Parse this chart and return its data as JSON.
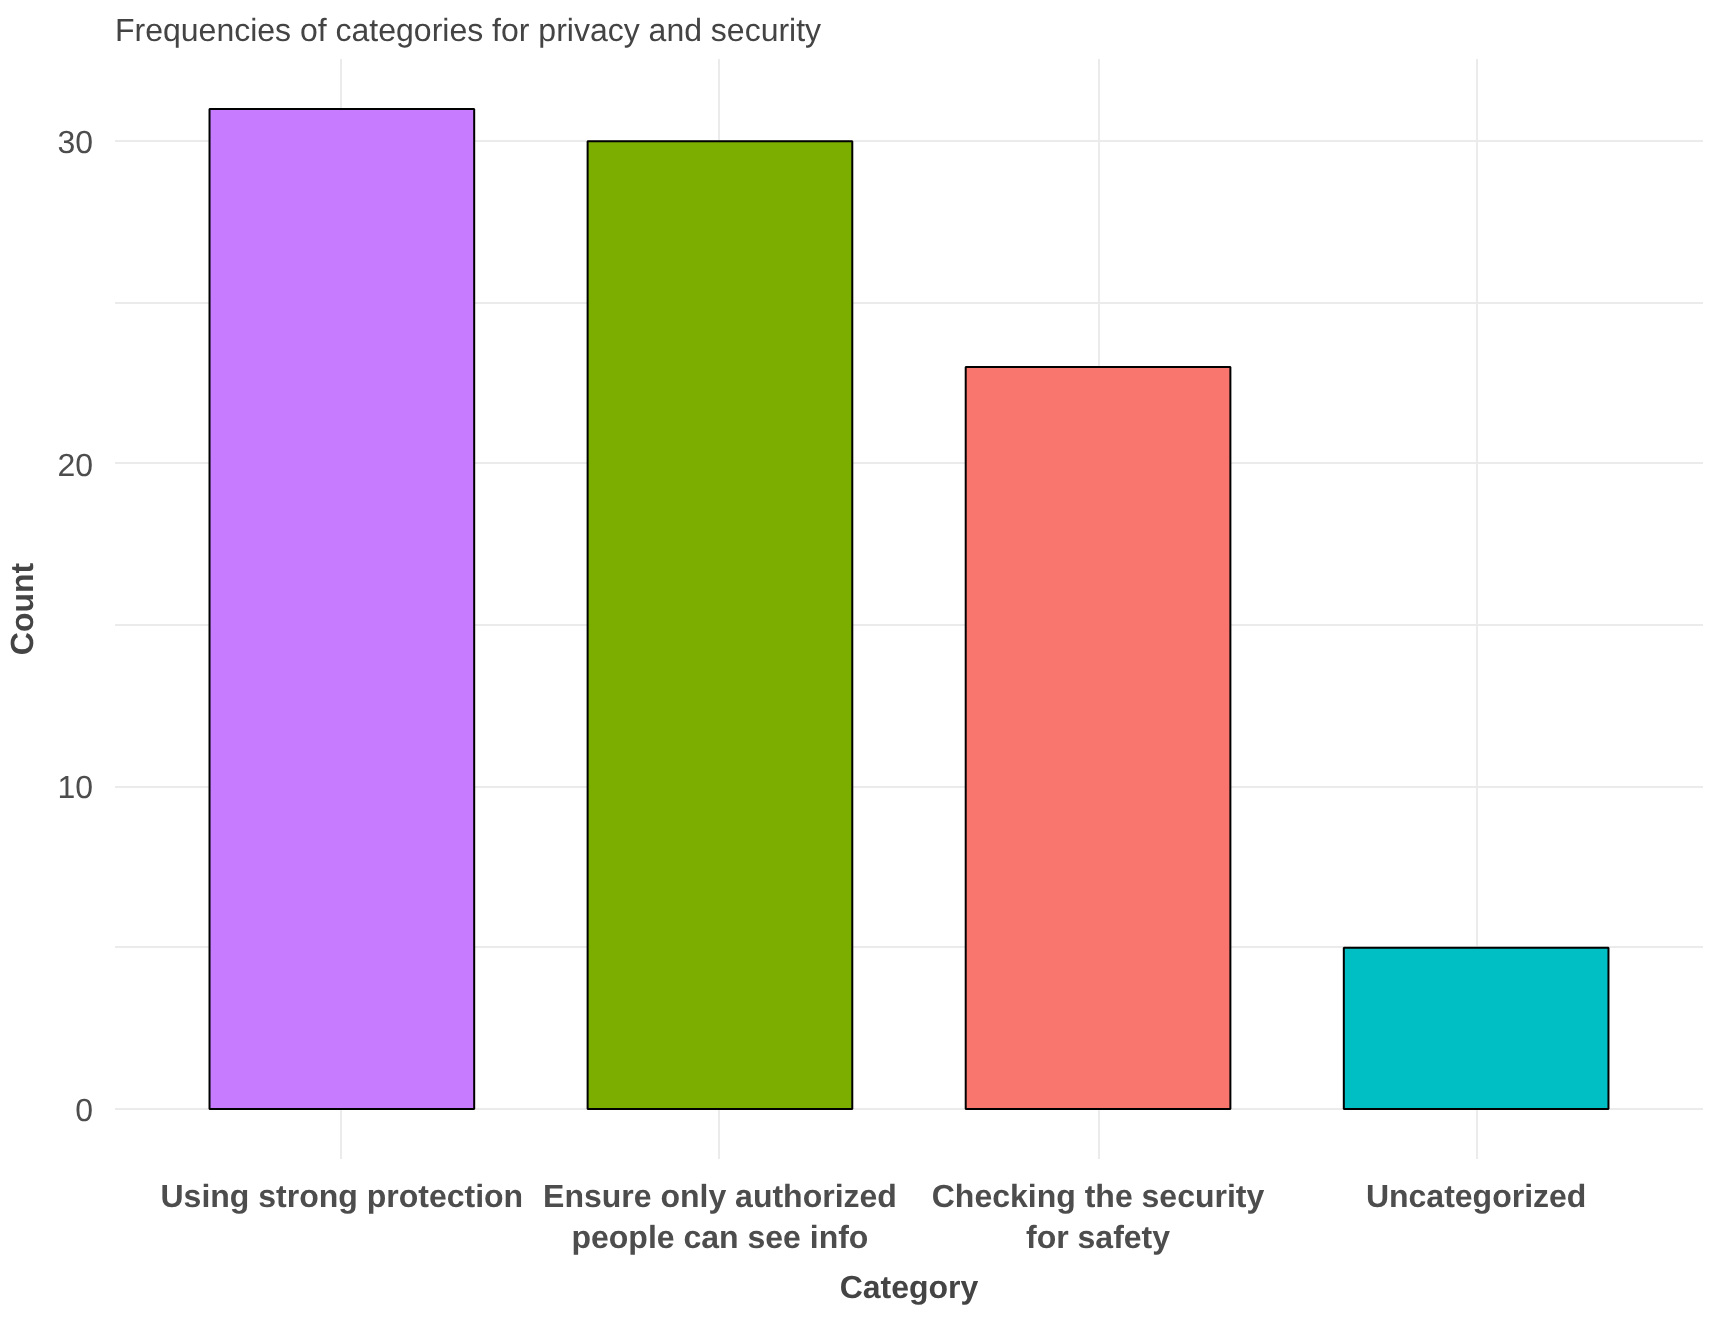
{
  "chart_data": {
    "type": "bar",
    "title": "Frequencies of categories for privacy and security",
    "xlabel": "Category",
    "ylabel": "Count",
    "categories": [
      "Using strong protection",
      "Ensure only authorized\npeople can see info",
      "Checking the security\nfor safety",
      "Uncategorized"
    ],
    "values": [
      31,
      30,
      23,
      5
    ],
    "colors": [
      "#c77cff",
      "#7cae00",
      "#f8766d",
      "#00bfc4"
    ],
    "ylim": [
      -1.55,
      32.55
    ],
    "yticks": [
      0,
      {
        "value": 5,
        "label": null
      },
      10,
      {
        "value": 15,
        "label": null
      },
      20,
      {
        "value": 25,
        "label": null
      },
      30
    ],
    "grid": true
  }
}
